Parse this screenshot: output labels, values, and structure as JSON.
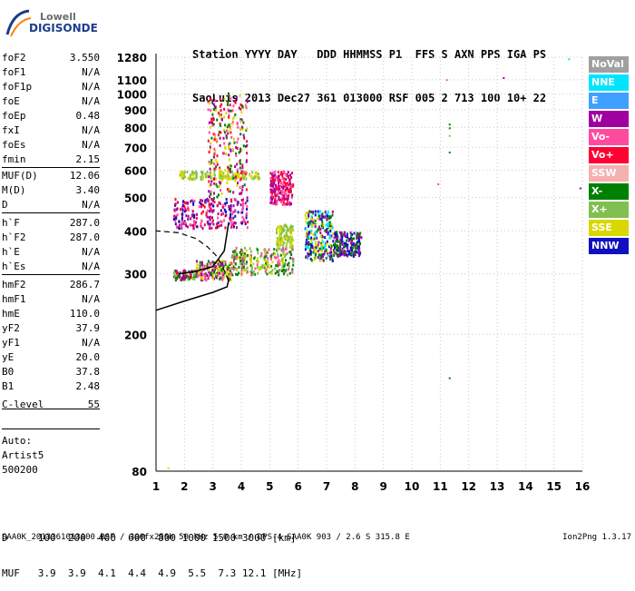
{
  "logo": {
    "line1": "Lowell",
    "line2": "DIGISONDE"
  },
  "header": {
    "line1": "Station YYYY DAY   DDD HHMMSS P1  FFS S AXN PPS IGA PS",
    "line2": "SaoLuis 2013 Dec27 361 013000 RSF 005 2 713 100 10+ 22"
  },
  "params_group1": [
    {
      "name": "foF2",
      "value": "3.550"
    },
    {
      "name": "foF1",
      "value": "N/A"
    },
    {
      "name": "foF1p",
      "value": "N/A"
    },
    {
      "name": "foE",
      "value": "N/A"
    },
    {
      "name": "foEp",
      "value": "0.48"
    },
    {
      "name": "fxI",
      "value": "N/A"
    },
    {
      "name": "foEs",
      "value": "N/A"
    },
    {
      "name": "fmin",
      "value": "2.15"
    }
  ],
  "params_group2": [
    {
      "name": "MUF(D)",
      "value": "12.06"
    },
    {
      "name": "M(D)",
      "value": "3.40"
    },
    {
      "name": "D",
      "value": "N/A"
    }
  ],
  "params_group3": [
    {
      "name": "h`F",
      "value": "287.0"
    },
    {
      "name": "h`F2",
      "value": "287.0"
    },
    {
      "name": "h`E",
      "value": "N/A"
    },
    {
      "name": "h`Es",
      "value": "N/A"
    }
  ],
  "params_group4": [
    {
      "name": "hmF2",
      "value": "286.7"
    },
    {
      "name": "hmF1",
      "value": "N/A"
    },
    {
      "name": "hmE",
      "value": "110.0"
    },
    {
      "name": "yF2",
      "value": "37.9"
    },
    {
      "name": "yF1",
      "value": "N/A"
    },
    {
      "name": "yE",
      "value": "20.0"
    },
    {
      "name": "B0",
      "value": "37.8"
    },
    {
      "name": "B1",
      "value": "2.48"
    }
  ],
  "clevel": {
    "name": "C-level",
    "value": "55"
  },
  "auto": {
    "line1": "Auto:",
    "line2": "Artist5",
    "line3": "500200"
  },
  "legend": [
    {
      "label": "NoVal",
      "color": "#a0a0a0"
    },
    {
      "label": "NNE",
      "color": "#00e5ff"
    },
    {
      "label": "E",
      "color": "#3fa0ff"
    },
    {
      "label": "W",
      "color": "#a000a0"
    },
    {
      "label": "Vo-",
      "color": "#ff4aa0"
    },
    {
      "label": "Vo+",
      "color": "#ff0033"
    },
    {
      "label": "SSW",
      "color": "#f5b0b0"
    },
    {
      "label": "X-",
      "color": "#008000"
    },
    {
      "label": "X+",
      "color": "#80c050"
    },
    {
      "label": "SSE",
      "color": "#d8d800"
    },
    {
      "label": "NNW",
      "color": "#1010c0"
    }
  ],
  "footer": {
    "line1": "D     100  200  400  600  800 1000 1500 3000 [km]",
    "line2": "MUF   3.9  3.9  4.1  4.4  4.9  5.5  7.3 12.1 [MHz]",
    "filename": "SAA0K_2013361013000.RSF / 300fx256h 50 kHz 5.0 km / DPS-4 SAA0K 903 / 2.6 S 315.8 E",
    "version": "Ion2Png 1.3.17"
  },
  "chart_data": {
    "type": "scatter",
    "xlabel": "",
    "ylabel": "",
    "xlim": [
      1,
      16
    ],
    "ylim": [
      80,
      1280
    ],
    "x_ticks": [
      1,
      2,
      3,
      4,
      5,
      6,
      7,
      8,
      9,
      10,
      11,
      12,
      13,
      14,
      15,
      16
    ],
    "y_ticks": [
      80,
      200,
      300,
      400,
      500,
      600,
      700,
      800,
      900,
      1000,
      1100,
      1280
    ],
    "y_scale": "log",
    "grid": "dotted",
    "clusters": [
      {
        "x": [
          1.6,
          2.4
        ],
        "y": [
          290,
          310
        ],
        "colors": [
          "#008000",
          "#80c050",
          "#a000a0",
          "#ff0033"
        ]
      },
      {
        "x": [
          2.4,
          3.6
        ],
        "y": [
          290,
          330
        ],
        "colors": [
          "#d8d800",
          "#ff4aa0",
          "#a000a0",
          "#008000"
        ]
      },
      {
        "x": [
          1.6,
          4.2
        ],
        "y": [
          410,
          500
        ],
        "colors": [
          "#a000a0",
          "#ff0033",
          "#1010c0",
          "#ff4aa0"
        ]
      },
      {
        "x": [
          1.8,
          4.6
        ],
        "y": [
          570,
          600
        ],
        "colors": [
          "#d8d800",
          "#80c050"
        ]
      },
      {
        "x": [
          2.8,
          4.2
        ],
        "y": [
          500,
          1000
        ],
        "colors": [
          "#a000a0",
          "#ff0033",
          "#008000",
          "#d8d800",
          "#ff4aa0"
        ]
      },
      {
        "x": [
          3.6,
          5.8
        ],
        "y": [
          300,
          360
        ],
        "colors": [
          "#d8d800",
          "#80c050",
          "#ff4aa0",
          "#008000"
        ]
      },
      {
        "x": [
          5.0,
          5.8
        ],
        "y": [
          480,
          600
        ],
        "colors": [
          "#ff0033",
          "#a000a0",
          "#ff4aa0"
        ]
      },
      {
        "x": [
          5.2,
          5.8
        ],
        "y": [
          360,
          420
        ],
        "colors": [
          "#d8d800",
          "#80c050"
        ]
      },
      {
        "x": [
          6.2,
          7.2
        ],
        "y": [
          330,
          460
        ],
        "colors": [
          "#d8d800",
          "#008000",
          "#a000a0",
          "#00e5ff",
          "#1010c0"
        ]
      },
      {
        "x": [
          7.2,
          8.2
        ],
        "y": [
          340,
          400
        ],
        "colors": [
          "#1010c0",
          "#008000",
          "#a000a0"
        ]
      }
    ],
    "isolated_points": [
      {
        "x": 11.3,
        "y": 820,
        "color": "#008000"
      },
      {
        "x": 11.3,
        "y": 800,
        "color": "#008000"
      },
      {
        "x": 11.3,
        "y": 760,
        "color": "#80c050"
      },
      {
        "x": 11.3,
        "y": 680,
        "color": "#008000"
      },
      {
        "x": 11.3,
        "y": 150,
        "color": "#008000"
      },
      {
        "x": 11.2,
        "y": 1105,
        "color": "#ff4aa0"
      },
      {
        "x": 13.2,
        "y": 1120,
        "color": "#a000a0"
      },
      {
        "x": 15.5,
        "y": 1270,
        "color": "#00e5ff"
      },
      {
        "x": 15.9,
        "y": 535,
        "color": "#a000a0"
      },
      {
        "x": 10.9,
        "y": 550,
        "color": "#ff4aa0"
      },
      {
        "x": 1.4,
        "y": 82,
        "color": "#d8d800"
      }
    ],
    "profile_curve": [
      [
        3.55,
        287
      ],
      [
        3.45,
        300
      ],
      [
        3.3,
        320
      ],
      [
        3.1,
        340
      ],
      [
        2.8,
        360
      ],
      [
        2.4,
        380
      ],
      [
        1.8,
        395
      ],
      [
        1,
        400
      ]
    ],
    "ordinary_trace": [
      [
        1.8,
        300
      ],
      [
        2.4,
        305
      ],
      [
        3.0,
        315
      ],
      [
        3.4,
        350
      ],
      [
        3.55,
        420
      ]
    ],
    "lower_curve": [
      [
        1,
        235
      ],
      [
        2,
        250
      ],
      [
        3,
        265
      ],
      [
        3.5,
        275
      ],
      [
        3.55,
        287
      ]
    ]
  }
}
